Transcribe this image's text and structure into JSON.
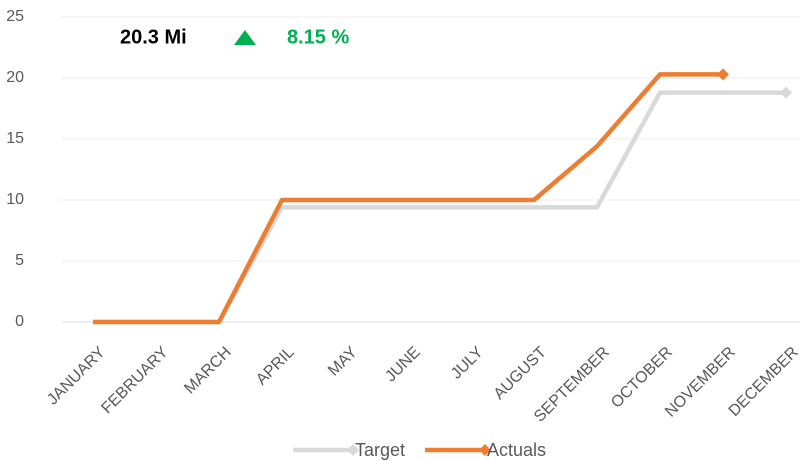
{
  "chart_data": {
    "type": "line",
    "annotations": [
      "20.3 Mi",
      "8.15 %"
    ],
    "categories": [
      "JANUARY",
      "FEBRUARY",
      "MARCH",
      "APRIL",
      "MAY",
      "JUNE",
      "JULY",
      "AUGUST",
      "SEPTEMBER",
      "OCTOBER",
      "NOVEMBER",
      "DECEMBER"
    ],
    "series": [
      {
        "name": "Target",
        "color": "#d9d9d9",
        "values": [
          0,
          0,
          0,
          9.4,
          9.4,
          9.4,
          9.4,
          9.4,
          9.4,
          18.8,
          18.8,
          18.8
        ]
      },
      {
        "name": "Actuals",
        "color": "#ed7d31",
        "values": [
          0,
          0,
          0,
          10,
          10,
          10,
          10,
          10,
          14.4,
          20.3,
          20.3,
          null
        ]
      }
    ],
    "ylim": [
      0,
      25
    ],
    "yticks": [
      0,
      5,
      10,
      15,
      20,
      25
    ],
    "grid": true,
    "legend": "bottom"
  }
}
